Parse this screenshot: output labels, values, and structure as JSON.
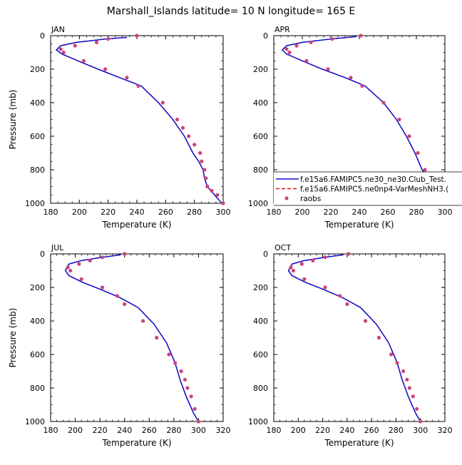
{
  "figure": {
    "title": "Marshall_Islands  latitude= 10 N longitude= 165 E"
  },
  "legend": {
    "entries": [
      {
        "label": "f.e15a6.FAMIPC5.ne30_ne30.Club_Test.",
        "style": "solid",
        "color": "#1010cc"
      },
      {
        "label": "f.e15a6.FAMIPC5.ne0np4-VarMeshNH3.(",
        "style": "dashed",
        "color": "#dd1111"
      },
      {
        "label": "raobs",
        "style": "marker",
        "color": "#cc4477"
      }
    ]
  },
  "colors": {
    "model_a": "#1010cc",
    "model_b": "#dd1111",
    "obs": "#cc4477"
  },
  "chart_data": [
    {
      "type": "line",
      "panel": "JAN",
      "xlabel": "Temperature (K)",
      "ylabel": "Pressure (mb)",
      "xlim": [
        180,
        300
      ],
      "ylim": [
        1000,
        0
      ],
      "xticks": [
        180,
        200,
        220,
        240,
        260,
        280,
        300
      ],
      "yticks": [
        0,
        200,
        400,
        600,
        800,
        1000
      ],
      "series": [
        {
          "name": "f.e15a6.FAMIPC5.ne30_ne30.Club_Test.",
          "x": [
            233,
            218,
            198,
            187,
            184,
            188,
            199,
            213,
            228,
            243,
            255,
            265,
            273,
            279,
            283,
            286,
            287,
            289,
            294,
            299
          ],
          "y": [
            10,
            20,
            40,
            60,
            85,
            110,
            150,
            200,
            250,
            300,
            400,
            500,
            600,
            700,
            750,
            800,
            850,
            900,
            950,
            1000
          ]
        },
        {
          "name": "f.e15a6.FAMIPC5.ne0np4-VarMeshNH3.(",
          "x": [
            233,
            218,
            198,
            187,
            184,
            188,
            199,
            213,
            228,
            243,
            255,
            265,
            273,
            279,
            283,
            286,
            287,
            289,
            294,
            299
          ],
          "y": [
            10,
            20,
            40,
            60,
            85,
            110,
            150,
            200,
            250,
            300,
            400,
            500,
            600,
            700,
            750,
            800,
            850,
            900,
            950,
            1000
          ]
        },
        {
          "name": "raobs",
          "x": [
            240,
            220,
            212,
            197,
            187,
            189,
            203,
            218,
            233,
            241,
            258,
            268,
            272,
            276,
            280,
            284,
            285,
            287,
            288,
            289,
            292,
            296,
            300
          ],
          "y": [
            0,
            20,
            40,
            60,
            80,
            100,
            150,
            200,
            250,
            300,
            400,
            500,
            550,
            600,
            650,
            700,
            750,
            800,
            850,
            900,
            925,
            950,
            1000
          ]
        }
      ]
    },
    {
      "type": "line",
      "panel": "APR",
      "xlabel": "Temperature (K)",
      "ylabel": "",
      "xlim": [
        180,
        300
      ],
      "ylim": [
        1000,
        0
      ],
      "xticks": [
        180,
        200,
        220,
        240,
        260,
        280,
        300
      ],
      "yticks": [
        0,
        200,
        400,
        600,
        800,
        1000
      ],
      "series": [
        {
          "name": "f.e15a6.FAMIPC5.ne30_ne30.Club_Test.",
          "x": [
            238,
            220,
            200,
            189,
            186,
            189,
            200,
            214,
            230,
            244,
            257,
            266,
            273,
            279,
            284,
            288,
            291,
            295,
            299
          ],
          "y": [
            5,
            20,
            40,
            60,
            85,
            110,
            150,
            200,
            250,
            300,
            400,
            500,
            600,
            700,
            800,
            850,
            900,
            950,
            1000
          ]
        },
        {
          "name": "f.e15a6.FAMIPC5.ne0np4-VarMeshNH3.(",
          "x": [
            238,
            220,
            200,
            189,
            186,
            189,
            200,
            214,
            230,
            244,
            257,
            266,
            273,
            279,
            284,
            288,
            291,
            295,
            299
          ],
          "y": [
            5,
            20,
            40,
            60,
            85,
            110,
            150,
            200,
            250,
            300,
            400,
            500,
            600,
            700,
            800,
            850,
            900,
            950,
            1000
          ]
        },
        {
          "name": "raobs",
          "x": [
            241,
            221,
            206,
            196,
            189,
            191,
            203,
            218,
            234,
            242,
            257,
            268,
            275,
            281,
            286,
            290,
            294,
            299
          ],
          "y": [
            0,
            20,
            40,
            60,
            80,
            100,
            150,
            200,
            250,
            300,
            400,
            500,
            600,
            700,
            800,
            850,
            925,
            1000
          ]
        }
      ]
    },
    {
      "type": "line",
      "panel": "JUL",
      "xlabel": "Temperature (K)",
      "ylabel": "Pressure (mb)",
      "xlim": [
        180,
        320
      ],
      "ylim": [
        1000,
        0
      ],
      "xticks": [
        180,
        200,
        220,
        240,
        260,
        280,
        300,
        320
      ],
      "yticks": [
        0,
        200,
        400,
        600,
        800,
        1000
      ],
      "series": [
        {
          "name": "f.e15a6.FAMIPC5.ne30_ne30.Club_Test.",
          "x": [
            237,
            222,
            205,
            195,
            192,
            195,
            206,
            220,
            236,
            251,
            264,
            274,
            281,
            285,
            290,
            296,
            300
          ],
          "y": [
            5,
            20,
            40,
            60,
            100,
            130,
            170,
            210,
            260,
            320,
            420,
            530,
            650,
            750,
            850,
            950,
            1000
          ]
        },
        {
          "name": "f.e15a6.FAMIPC5.ne0np4-VarMeshNH3.(",
          "x": [
            237,
            222,
            205,
            195,
            192,
            195,
            206,
            220,
            236,
            251,
            264,
            274,
            281,
            285,
            290,
            296,
            300
          ],
          "y": [
            5,
            20,
            40,
            60,
            100,
            130,
            170,
            210,
            260,
            320,
            420,
            530,
            650,
            750,
            850,
            950,
            1000
          ]
        },
        {
          "name": "raobs",
          "x": [
            240,
            222,
            212,
            203,
            194,
            196,
            205,
            222,
            234,
            240,
            255,
            266,
            276,
            281,
            286,
            289,
            291,
            294,
            297,
            300
          ],
          "y": [
            0,
            20,
            40,
            60,
            80,
            100,
            150,
            200,
            250,
            300,
            400,
            500,
            600,
            650,
            700,
            750,
            800,
            850,
            925,
            1000
          ]
        }
      ]
    },
    {
      "type": "line",
      "panel": "OCT",
      "xlabel": "Temperature (K)",
      "ylabel": "",
      "xlim": [
        180,
        320
      ],
      "ylim": [
        1000,
        0
      ],
      "xticks": [
        180,
        200,
        220,
        240,
        260,
        280,
        300,
        320
      ],
      "yticks": [
        0,
        200,
        400,
        600,
        800,
        1000
      ],
      "series": [
        {
          "name": "f.e15a6.FAMIPC5.ne30_ne30.Club_Test.",
          "x": [
            237,
            222,
            205,
            195,
            192,
            195,
            206,
            220,
            236,
            251,
            264,
            274,
            281,
            285,
            290,
            296,
            300
          ],
          "y": [
            5,
            20,
            40,
            60,
            100,
            130,
            170,
            210,
            260,
            320,
            420,
            530,
            650,
            750,
            850,
            950,
            1000
          ]
        },
        {
          "name": "f.e15a6.FAMIPC5.ne0np4-VarMeshNH3.(",
          "x": [
            237,
            222,
            205,
            195,
            192,
            195,
            206,
            220,
            236,
            251,
            264,
            274,
            281,
            285,
            290,
            296,
            300
          ],
          "y": [
            5,
            20,
            40,
            60,
            100,
            130,
            170,
            210,
            260,
            320,
            420,
            530,
            650,
            750,
            850,
            950,
            1000
          ]
        },
        {
          "name": "raobs",
          "x": [
            241,
            222,
            212,
            203,
            194,
            196,
            205,
            222,
            234,
            240,
            255,
            266,
            276,
            281,
            286,
            289,
            291,
            294,
            297,
            300
          ],
          "y": [
            0,
            20,
            40,
            60,
            80,
            100,
            150,
            200,
            250,
            300,
            400,
            500,
            600,
            650,
            700,
            750,
            800,
            850,
            925,
            1000
          ]
        }
      ]
    }
  ]
}
